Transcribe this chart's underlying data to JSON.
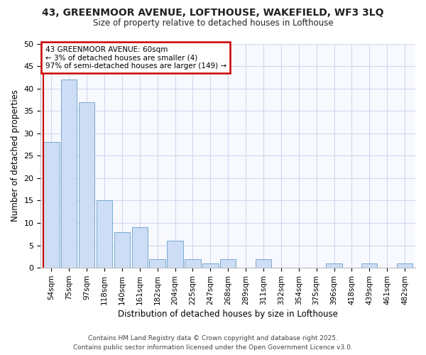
{
  "title_line1": "43, GREENMOOR AVENUE, LOFTHOUSE, WAKEFIELD, WF3 3LQ",
  "title_line2": "Size of property relative to detached houses in Lofthouse",
  "xlabel": "Distribution of detached houses by size in Lofthouse",
  "ylabel": "Number of detached properties",
  "categories": [
    "54sqm",
    "75sqm",
    "97sqm",
    "118sqm",
    "140sqm",
    "161sqm",
    "182sqm",
    "204sqm",
    "225sqm",
    "247sqm",
    "268sqm",
    "289sqm",
    "311sqm",
    "332sqm",
    "354sqm",
    "375sqm",
    "396sqm",
    "418sqm",
    "439sqm",
    "461sqm",
    "482sqm"
  ],
  "values": [
    28,
    42,
    37,
    15,
    8,
    9,
    2,
    6,
    2,
    1,
    2,
    0,
    2,
    0,
    0,
    0,
    1,
    0,
    1,
    0,
    1
  ],
  "bar_color": "#ccddf5",
  "bar_edge_color": "#7aaad0",
  "annotation_text": "43 GREENMOOR AVENUE: 60sqm\n← 3% of detached houses are smaller (4)\n97% of semi-detached houses are larger (149) →",
  "annotation_box_facecolor": "#ffffff",
  "annotation_box_edgecolor": "#cc0000",
  "vline_color": "#cc0000",
  "ylim_max": 50,
  "yticks": [
    0,
    5,
    10,
    15,
    20,
    25,
    30,
    35,
    40,
    45,
    50
  ],
  "footer_text": "Contains HM Land Registry data © Crown copyright and database right 2025.\nContains public sector information licensed under the Open Government Licence v3.0.",
  "bg_color": "#ffffff",
  "plot_bg_color": "#f7f9ff",
  "grid_color": "#d0d8ee"
}
